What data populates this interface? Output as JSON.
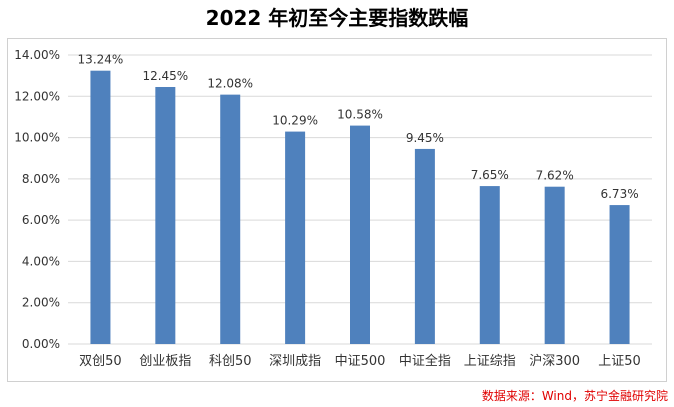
{
  "chart_data": {
    "type": "bar",
    "title": "2022 年初至今主要指数跌幅",
    "categories": [
      "双创50",
      "创业板指",
      "科创50",
      "深圳成指",
      "中证500",
      "中证全指",
      "上证综指",
      "沪深300",
      "上证50"
    ],
    "values": [
      13.24,
      12.45,
      12.08,
      10.29,
      10.58,
      9.45,
      7.65,
      7.62,
      6.73
    ],
    "value_labels": [
      "13.24%",
      "12.45%",
      "12.08%",
      "10.29%",
      "10.58%",
      "9.45%",
      "7.65%",
      "7.62%",
      "6.73%"
    ],
    "y_ticks": [
      "0.00%",
      "2.00%",
      "4.00%",
      "6.00%",
      "8.00%",
      "10.00%",
      "12.00%",
      "14.00%"
    ],
    "ylim": [
      0,
      14
    ],
    "xlabel": "",
    "ylabel": "",
    "grid": true,
    "bar_color": "#4f81bd"
  },
  "source": "数据来源：Wind，苏宁金融研究院"
}
